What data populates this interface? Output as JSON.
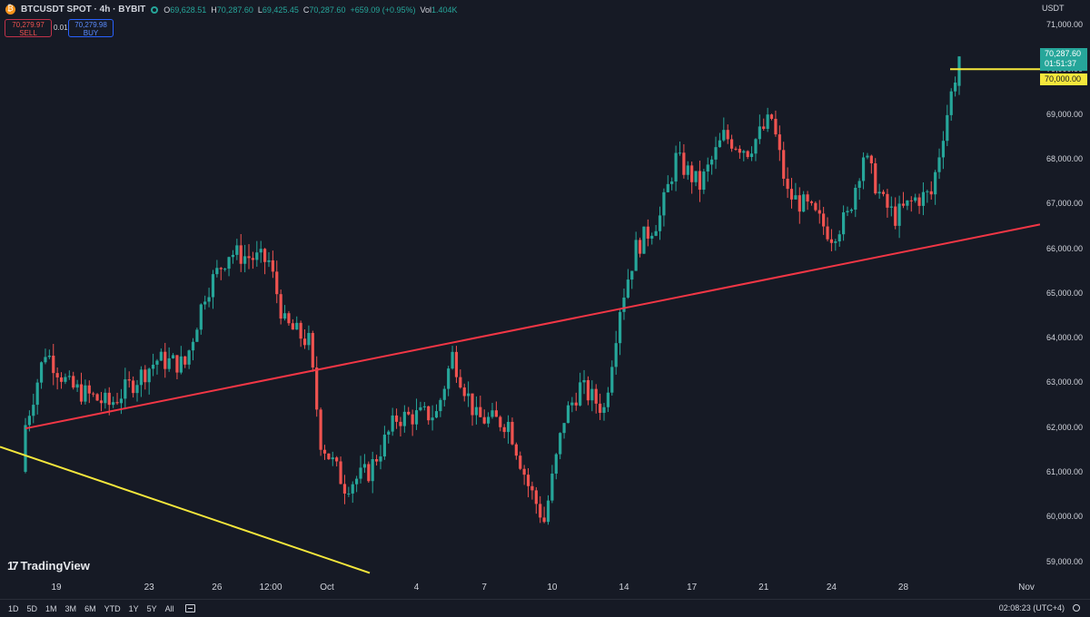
{
  "header": {
    "symbol": "BTCUSDT SPOT · 4h · BYBIT",
    "ohlc": [
      {
        "k": "O",
        "v": "69,628.51"
      },
      {
        "k": "H",
        "v": "70,287.60"
      },
      {
        "k": "L",
        "v": "69,425.45"
      },
      {
        "k": "C",
        "v": "70,287.60"
      },
      {
        "k": "",
        "v": "+659.09 (+0.95%)"
      },
      {
        "k": "Vol",
        "v": "1.404K"
      }
    ]
  },
  "trade": {
    "sell_price": "70,279.97",
    "sell_label": "SELL",
    "spread": "0.01",
    "buy_price": "70,279.98",
    "buy_label": "BUY"
  },
  "price_axis": {
    "currency": "USDT",
    "labels": [
      "71,000.00",
      "70,000.00",
      "69,000.00",
      "68,000.00",
      "67,000.00",
      "66,000.00",
      "65,000.00",
      "64,000.00",
      "63,000.00",
      "62,000.00",
      "61,000.00",
      "60,000.00",
      "59,000.00"
    ],
    "current_price": "70,287.60",
    "countdown": "01:51:37",
    "level_label": "70,000.00"
  },
  "time_axis": {
    "labels": [
      "19",
      "23",
      "26",
      "12:00",
      "Oct",
      "4",
      "7",
      "10",
      "14",
      "17",
      "21",
      "24",
      "28",
      "Nov"
    ]
  },
  "bottom": {
    "ranges": [
      "1D",
      "5D",
      "1M",
      "3M",
      "6M",
      "YTD",
      "1Y",
      "5Y",
      "All"
    ],
    "clock": "02:08:23 (UTC+4)"
  },
  "brand": "TradingView",
  "colors": {
    "up": "#26a69a",
    "down": "#ef5350",
    "support_line": "#f23645",
    "trend_line": "#f5e73c",
    "background": "#161a25"
  },
  "chart_data": {
    "type": "candlestick",
    "ylim": [
      58700,
      71300
    ],
    "xlim": [
      0,
      272
    ],
    "lines": [
      {
        "name": "",
        "color": "#f23645",
        "points": [
          [
            17,
            61970
          ],
          [
            272,
            66530
          ]
        ]
      },
      {
        "name": "",
        "color": "#f5e73c",
        "points": [
          [
            0,
            61560
          ],
          [
            97,
            58740
          ]
        ]
      },
      {
        "name": "",
        "color": "#f5e73c",
        "points": [
          [
            249,
            70000
          ],
          [
            272,
            70000
          ]
        ]
      }
    ],
    "anchors": [
      {
        "label": "19",
        "x": 17,
        "close": 62050
      },
      {
        "label": "",
        "x": 22,
        "close": 63700
      },
      {
        "label": "",
        "x": 28,
        "close": 62900
      },
      {
        "label": "",
        "x": 38,
        "close": 62500
      },
      {
        "label": "",
        "x": 50,
        "close": 63500
      },
      {
        "label": "",
        "x": 57,
        "close": 63400
      },
      {
        "label": "",
        "x": 62,
        "close": 65000
      },
      {
        "label": "",
        "x": 68,
        "close": 65900
      },
      {
        "label": "",
        "x": 78,
        "close": 65700
      },
      {
        "label": "",
        "x": 82,
        "close": 64300
      },
      {
        "label": "",
        "x": 88,
        "close": 63900
      },
      {
        "label": "",
        "x": 91,
        "close": 61700
      },
      {
        "label": "",
        "x": 97,
        "close": 60700
      },
      {
        "label": "",
        "x": 103,
        "close": 61000
      },
      {
        "label": "",
        "x": 110,
        "close": 62200
      },
      {
        "label": "",
        "x": 120,
        "close": 62300
      },
      {
        "label": "",
        "x": 124,
        "close": 63600
      },
      {
        "label": "",
        "x": 130,
        "close": 62200
      },
      {
        "label": "",
        "x": 138,
        "close": 62100
      },
      {
        "label": "",
        "x": 143,
        "close": 60700
      },
      {
        "label": "",
        "x": 147,
        "close": 59900
      },
      {
        "label": "",
        "x": 152,
        "close": 62200
      },
      {
        "label": "",
        "x": 156,
        "close": 62900
      },
      {
        "label": "",
        "x": 162,
        "close": 62400
      },
      {
        "label": "",
        "x": 166,
        "close": 64700
      },
      {
        "label": "",
        "x": 170,
        "close": 66000
      },
      {
        "label": "",
        "x": 176,
        "close": 66700
      },
      {
        "label": "",
        "x": 180,
        "close": 68000
      },
      {
        "label": "",
        "x": 186,
        "close": 67400
      },
      {
        "label": "",
        "x": 192,
        "close": 68500
      },
      {
        "label": "",
        "x": 198,
        "close": 68200
      },
      {
        "label": "",
        "x": 204,
        "close": 68900
      },
      {
        "label": "",
        "x": 208,
        "close": 67200
      },
      {
        "label": "",
        "x": 213,
        "close": 66900
      },
      {
        "label": "",
        "x": 219,
        "close": 66300
      },
      {
        "label": "",
        "x": 223,
        "close": 66700
      },
      {
        "label": "",
        "x": 227,
        "close": 68100
      },
      {
        "label": "",
        "x": 232,
        "close": 67000
      },
      {
        "label": "",
        "x": 235,
        "close": 66700
      },
      {
        "label": "",
        "x": 240,
        "close": 67100
      },
      {
        "label": "",
        "x": 244,
        "close": 67200
      },
      {
        "label": "",
        "x": 247,
        "close": 68600
      },
      {
        "label": "",
        "x": 251,
        "close": 70287
      }
    ]
  }
}
